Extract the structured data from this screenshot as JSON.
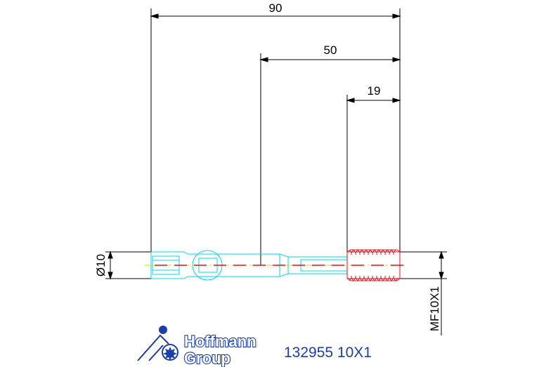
{
  "dimensions": {
    "overall_length": "90",
    "shank_length": "50",
    "thread_length": "19",
    "diameter": "Ø10",
    "thread_size": "MF10X1"
  },
  "logo": {
    "line1": "Hoffmann",
    "line2": "Group"
  },
  "part_label": "132955 10X1",
  "colors": {
    "outline": "#00d8e8",
    "thread": "#e0101e",
    "centerline_dash": "#e0101e",
    "centerline_alt": "#f0d000",
    "dimension": "#000000",
    "brand": "#1b3fa8"
  }
}
